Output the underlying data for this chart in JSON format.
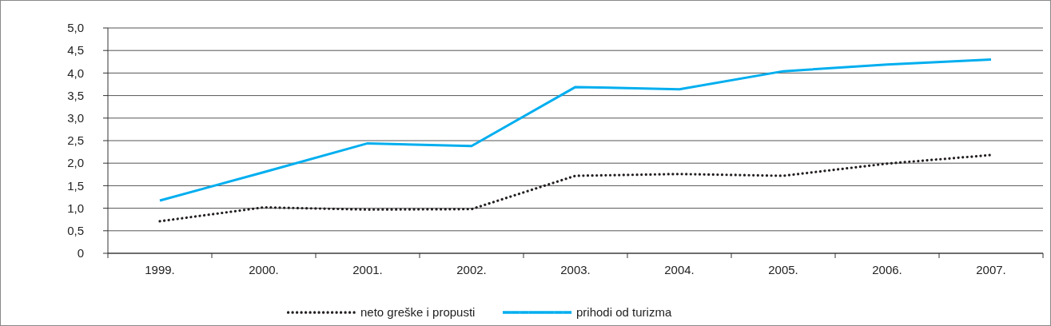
{
  "chart_data": {
    "type": "line",
    "categories": [
      "1999.",
      "2000.",
      "2001.",
      "2002.",
      "2003.",
      "2004.",
      "2005.",
      "2006.",
      "2007."
    ],
    "series": [
      {
        "name": "neto greške i propusti",
        "color": "#231f20",
        "line_style": "dotted",
        "values": [
          0.71,
          1.02,
          0.97,
          0.98,
          1.72,
          1.76,
          1.72,
          1.99,
          2.18
        ]
      },
      {
        "name": "prihodi od turizma",
        "color": "#00aeef",
        "line_style": "solid",
        "values": [
          1.17,
          1.8,
          2.44,
          2.38,
          3.69,
          3.64,
          4.04,
          4.19,
          4.3
        ]
      }
    ],
    "ylim": [
      0,
      5
    ],
    "yticks": [
      {
        "value": 0,
        "label": "0"
      },
      {
        "value": 0.5,
        "label": "0,5"
      },
      {
        "value": 1,
        "label": "1,0"
      },
      {
        "value": 1.5,
        "label": "1,5"
      },
      {
        "value": 2,
        "label": "2,0"
      },
      {
        "value": 2.5,
        "label": "2,5"
      },
      {
        "value": 3,
        "label": "3,0"
      },
      {
        "value": 3.5,
        "label": "3,5"
      },
      {
        "value": 4,
        "label": "4,0"
      },
      {
        "value": 4.5,
        "label": "4,5"
      },
      {
        "value": 5,
        "label": "5,0"
      }
    ],
    "grid": "y",
    "legend": "bottom"
  }
}
